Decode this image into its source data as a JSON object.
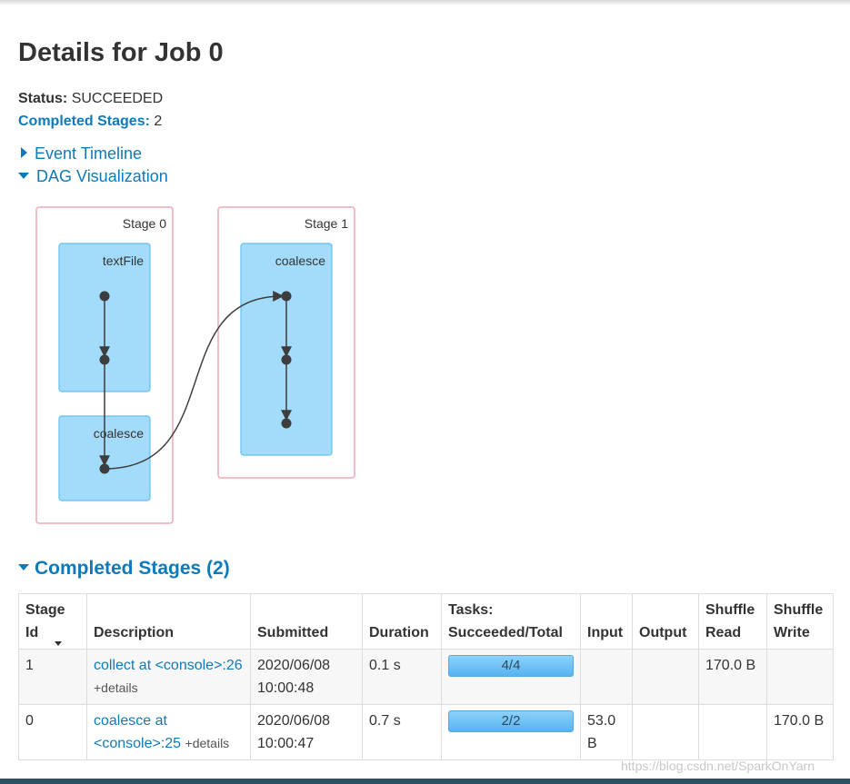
{
  "page": {
    "title": "Details for Job 0"
  },
  "summary": {
    "status_label": "Status:",
    "status_value": "SUCCEEDED",
    "completed_label": "Completed Stages:",
    "completed_value": "2"
  },
  "toggles": {
    "event_timeline": "Event Timeline",
    "dag_visualization": "DAG Visualization"
  },
  "dag": {
    "stages": [
      {
        "label": "Stage 0",
        "clusters": [
          "textFile",
          "coalesce"
        ]
      },
      {
        "label": "Stage 1",
        "clusters": [
          "coalesce"
        ]
      }
    ],
    "colors": {
      "stage_border": "#f0a9b6",
      "cluster_fill": "#a3dcfa",
      "cluster_border": "#61bfef",
      "node": "#3d3d3d"
    }
  },
  "completed_stages": {
    "heading": "Completed Stages (2)",
    "columns": [
      "Stage Id",
      "Description",
      "Submitted",
      "Duration",
      "Tasks: Succeeded/Total",
      "Input",
      "Output",
      "Shuffle Read",
      "Shuffle Write"
    ],
    "rows": [
      {
        "stage_id": "1",
        "desc_link": "collect at <console>:26",
        "details": "+details",
        "submitted": "2020/06/08 10:00:48",
        "duration": "0.1 s",
        "tasks": "4/4",
        "tasks_fraction": 1.0,
        "input": "",
        "output": "",
        "shuffle_read": "170.0 B",
        "shuffle_write": ""
      },
      {
        "stage_id": "0",
        "desc_link": "coalesce at <console>:25",
        "details": "+details",
        "submitted": "2020/06/08 10:00:47",
        "duration": "0.7 s",
        "tasks": "2/2",
        "tasks_fraction": 1.0,
        "input": "53.0 B",
        "output": "",
        "shuffle_read": "",
        "shuffle_write": "170.0 B"
      }
    ]
  },
  "watermark": "https://blog.csdn.net/SparkOnYarn",
  "colors": {
    "link": "#0f7ab8",
    "text": "#333333"
  }
}
